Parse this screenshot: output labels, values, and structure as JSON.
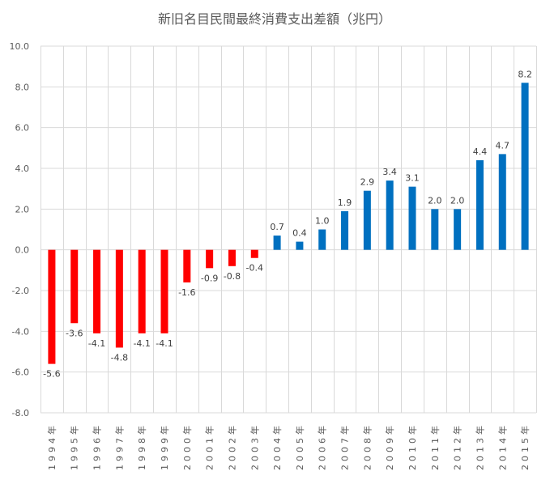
{
  "chart_data": {
    "type": "bar",
    "title": "新旧名目民間最終消費支出差額（兆円）",
    "xlabel": "",
    "ylabel": "",
    "ylim": [
      -8.0,
      10.0
    ],
    "ytick_step": 2.0,
    "yticks": [
      "-8.0",
      "-6.0",
      "-4.0",
      "-2.0",
      "0.0",
      "2.0",
      "4.0",
      "6.0",
      "8.0",
      "10.0"
    ],
    "grid": true,
    "legend": "none",
    "categories": [
      "1994年",
      "1995年",
      "1996年",
      "1997年",
      "1998年",
      "1999年",
      "2000年",
      "2001年",
      "2002年",
      "2003年",
      "2004年",
      "2005年",
      "2006年",
      "2007年",
      "2008年",
      "2009年",
      "2010年",
      "2011年",
      "2012年",
      "2013年",
      "2014年",
      "2015年"
    ],
    "values": [
      -5.6,
      -3.6,
      -4.1,
      -4.8,
      -4.1,
      -4.1,
      -1.6,
      -0.9,
      -0.8,
      -0.4,
      0.7,
      0.4,
      1.0,
      1.9,
      2.9,
      3.4,
      3.1,
      2.0,
      2.0,
      4.4,
      4.7,
      8.2
    ],
    "colors": {
      "negative": "#ff0000",
      "positive": "#0070c0"
    }
  }
}
